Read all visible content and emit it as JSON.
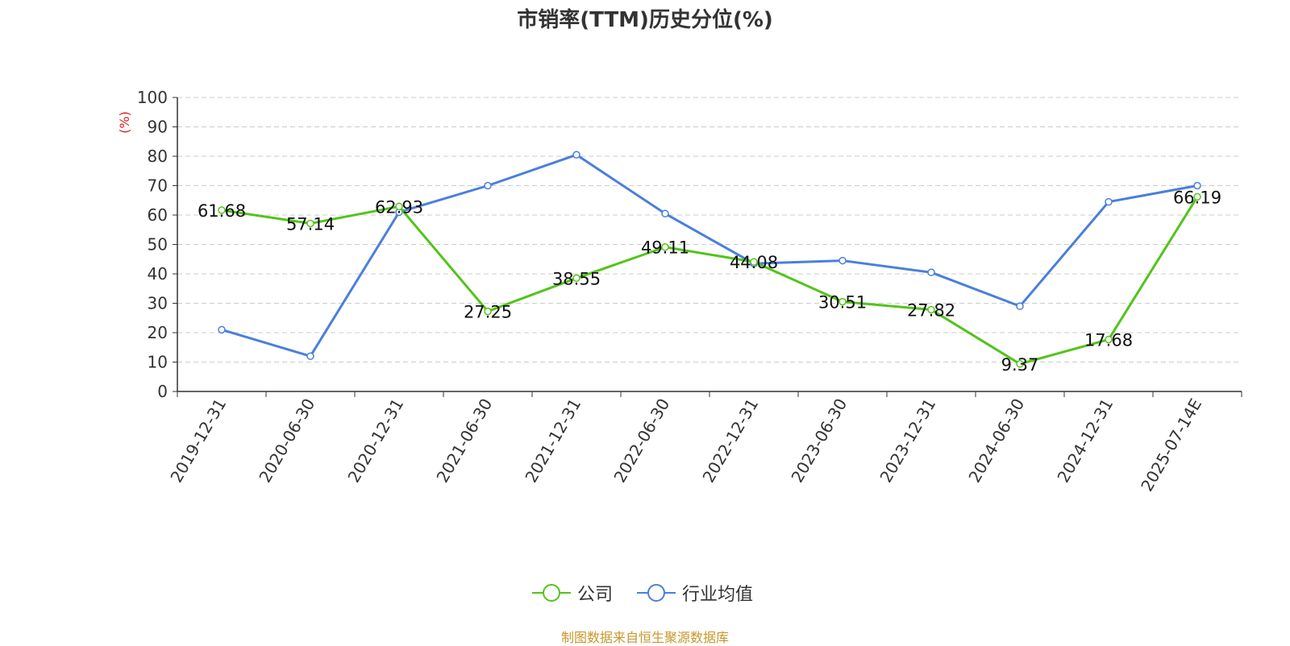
{
  "chart_data": {
    "type": "line",
    "title": "市销率(TTM)历史分位(%)",
    "ylabel": "(%)",
    "ylim": [
      0,
      100
    ],
    "yticks": [
      "0",
      "10",
      "20",
      "30",
      "40",
      "50",
      "60",
      "70",
      "80",
      "90",
      "100"
    ],
    "grid": true,
    "legend_position": "bottom",
    "categories": [
      "2019-12-31",
      "2020-06-30",
      "2020-12-31",
      "2021-06-30",
      "2021-12-31",
      "2022-06-30",
      "2022-12-31",
      "2023-06-30",
      "2023-12-31",
      "2024-06-30",
      "2024-12-31",
      "2025-07-14E"
    ],
    "series": [
      {
        "name": "公司",
        "color": "#52c41a",
        "values": [
          61.68,
          57.14,
          62.93,
          27.25,
          38.55,
          49.11,
          44.08,
          30.51,
          27.82,
          9.37,
          17.68,
          66.19
        ],
        "labels": [
          "61.68",
          "57.14",
          "62.93",
          "27.25",
          "38.55",
          "49.11",
          "44.08",
          "30.51",
          "27.82",
          "9.37",
          "17.68",
          "66.19"
        ]
      },
      {
        "name": "行业均值",
        "color": "#4a7fdc",
        "values": [
          21,
          12,
          61,
          70,
          80.5,
          60.5,
          43.5,
          44.5,
          40.5,
          29,
          64.5,
          70
        ]
      }
    ]
  },
  "source_note": "制图数据来自恒生聚源数据库"
}
